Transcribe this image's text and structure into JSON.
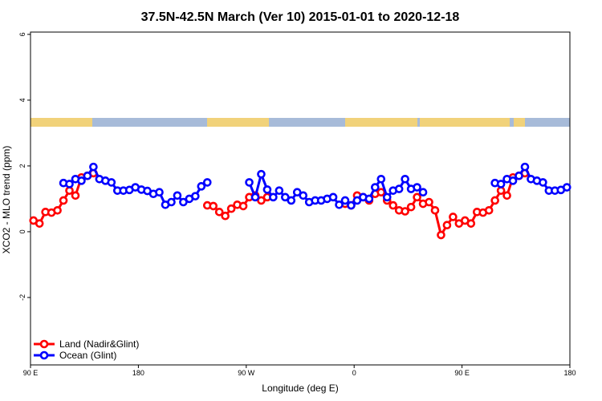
{
  "chart_data": {
    "type": "line",
    "title": "37.5N-42.5N March (Ver 10)   2015-01-01 to 2020-12-18",
    "x_label": "Longitude (deg E)",
    "y_label": "XCO2 - MLO trend (ppm)",
    "xlim": [
      90,
      540
    ],
    "ylim": [
      -4.05,
      6.07
    ],
    "xticks": [
      {
        "value": 90,
        "label": "90 E"
      },
      180,
      {
        "value": 270,
        "label": "90 W"
      },
      {
        "value": 360,
        "label": "0"
      },
      {
        "value": 450,
        "label": "90 E"
      },
      {
        "value": 540,
        "label": "180"
      }
    ],
    "yticks": [
      -2,
      0,
      2,
      4,
      6
    ],
    "legend": "bottomleft",
    "x": [
      92.5,
      97.5,
      102.5,
      107.5,
      112.5,
      117.5,
      122.5,
      127.5,
      132.5,
      137.5,
      142.5,
      147.5,
      152.5,
      157.5,
      162.5,
      167.5,
      172.5,
      177.5,
      182.5,
      187.5,
      192.5,
      197.5,
      202.5,
      207.5,
      212.5,
      217.5,
      222.5,
      227.5,
      232.5,
      237.5,
      242.5,
      247.5,
      252.5,
      257.5,
      262.5,
      267.5,
      272.5,
      277.5,
      282.5,
      287.5,
      292.5,
      297.5,
      302.5,
      307.5,
      312.5,
      317.5,
      322.5,
      327.5,
      332.5,
      337.5,
      342.5,
      347.5,
      352.5,
      357.5,
      362.5,
      367.5,
      372.5,
      377.5,
      382.5,
      387.5,
      392.5,
      397.5,
      402.5,
      407.5,
      412.5,
      417.5,
      422.5,
      427.5,
      432.5,
      437.5,
      442.5,
      447.5,
      452.5,
      457.5,
      462.5,
      467.5,
      472.5,
      477.5,
      482.5,
      487.5,
      492.5,
      497.5,
      502.5,
      507.5,
      512.5,
      517.5,
      522.5,
      527.5,
      532.5,
      537.5
    ],
    "series": [
      {
        "name": "Land (Nadir&Glint)",
        "color": "#ff0000",
        "values": [
          0.34,
          0.25,
          0.6,
          0.58,
          0.65,
          0.95,
          1.25,
          1.1,
          1.65,
          1.7,
          1.78,
          null,
          null,
          null,
          null,
          null,
          null,
          null,
          null,
          null,
          null,
          null,
          null,
          null,
          null,
          null,
          null,
          null,
          null,
          0.8,
          0.78,
          0.6,
          0.48,
          0.7,
          0.82,
          0.78,
          1.05,
          1.1,
          0.95,
          1.05,
          null,
          null,
          null,
          null,
          null,
          null,
          null,
          null,
          null,
          null,
          null,
          null,
          0.85,
          0.8,
          1.1,
          1.05,
          0.95,
          1.15,
          1.2,
          0.95,
          0.8,
          0.65,
          0.62,
          0.75,
          1.05,
          0.85,
          0.9,
          0.65,
          -0.1,
          0.2,
          0.45,
          0.25,
          0.34,
          0.25,
          0.6,
          0.58,
          0.65,
          0.95,
          1.25,
          1.1,
          1.65,
          1.7,
          1.78,
          null,
          null,
          null,
          null,
          null,
          null,
          null
        ]
      },
      {
        "name": "Ocean (Glint)",
        "color": "#0000ff",
        "values": [
          null,
          null,
          null,
          null,
          null,
          1.48,
          1.45,
          1.6,
          1.55,
          1.7,
          1.97,
          1.6,
          1.55,
          1.5,
          1.25,
          1.25,
          1.27,
          1.35,
          1.28,
          1.24,
          1.15,
          1.2,
          0.82,
          0.9,
          1.1,
          0.9,
          1.0,
          1.08,
          1.38,
          1.5,
          null,
          null,
          null,
          null,
          null,
          null,
          1.5,
          1.05,
          1.75,
          1.28,
          1.05,
          1.25,
          1.05,
          0.95,
          1.2,
          1.1,
          0.9,
          0.95,
          0.95,
          1.0,
          1.05,
          0.82,
          0.95,
          0.8,
          0.95,
          1.05,
          1.0,
          1.35,
          1.6,
          1.05,
          1.25,
          1.3,
          1.6,
          1.3,
          1.35,
          1.2,
          null,
          null,
          null,
          null,
          null,
          null,
          null,
          null,
          null,
          null,
          null,
          1.48,
          1.45,
          1.6,
          1.55,
          1.7,
          1.97,
          1.6,
          1.55,
          1.5,
          1.25,
          1.25,
          1.27,
          1.35
        ]
      }
    ]
  }
}
